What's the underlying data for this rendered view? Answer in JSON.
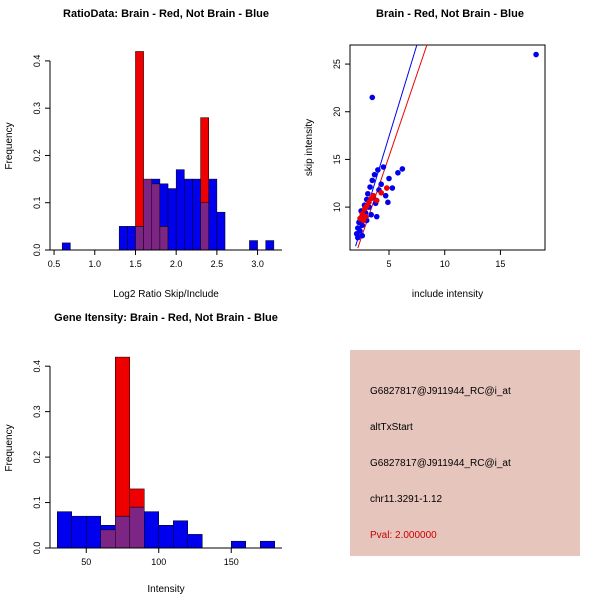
{
  "colors": {
    "red": "#ee0000",
    "blue": "#0000ee",
    "purple": "#7d2584",
    "box_bg": "#e6c5bd",
    "black": "#000000",
    "pval_red": "#cc0000"
  },
  "chart_data": [
    {
      "id": "ratio_hist",
      "type": "bar",
      "title": "RatioData: Brain - Red, Not Brain - Blue",
      "xlabel": "Log2 Ratio Skip/Include",
      "ylabel": "Frequency",
      "xlim": [
        0.45,
        3.3
      ],
      "ylim": [
        0,
        0.44
      ],
      "xticks": [
        0.5,
        1.0,
        1.5,
        2.0,
        2.5,
        3.0
      ],
      "xticklabels": [
        "0.5",
        "1.0",
        "1.5",
        "2.0",
        "2.5",
        "3.0"
      ],
      "yticks": [
        0.0,
        0.1,
        0.2,
        0.3,
        0.4
      ],
      "yticklabels": [
        "0.0",
        "0.1",
        "0.2",
        "0.3",
        "0.4"
      ],
      "bars": [
        {
          "x0": 0.6,
          "x1": 0.7,
          "blue": 0.015
        },
        {
          "x0": 1.3,
          "x1": 1.4,
          "blue": 0.05
        },
        {
          "x0": 1.4,
          "x1": 1.5,
          "blue": 0.05
        },
        {
          "x0": 1.5,
          "x1": 1.6,
          "blue": 0.05,
          "red": 0.42
        },
        {
          "x0": 1.6,
          "x1": 1.7,
          "blue": 0.15,
          "red": 0.15
        },
        {
          "x0": 1.7,
          "x1": 1.8,
          "blue": 0.15,
          "red": 0.14
        },
        {
          "x0": 1.8,
          "x1": 1.9,
          "blue": 0.14,
          "red": 0.05
        },
        {
          "x0": 1.9,
          "x1": 2.0,
          "blue": 0.13
        },
        {
          "x0": 2.0,
          "x1": 2.1,
          "blue": 0.17
        },
        {
          "x0": 2.1,
          "x1": 2.2,
          "blue": 0.15
        },
        {
          "x0": 2.2,
          "x1": 2.3,
          "blue": 0.15
        },
        {
          "x0": 2.3,
          "x1": 2.4,
          "blue": 0.1,
          "red": 0.28
        },
        {
          "x0": 2.4,
          "x1": 2.5,
          "blue": 0.15
        },
        {
          "x0": 2.5,
          "x1": 2.6,
          "blue": 0.08
        },
        {
          "x0": 2.9,
          "x1": 3.0,
          "blue": 0.02
        },
        {
          "x0": 3.1,
          "x1": 3.2,
          "blue": 0.02
        }
      ]
    },
    {
      "id": "scatter",
      "type": "scatter",
      "title": "Brain - Red, Not Brain - Blue",
      "xlabel": "include intensity",
      "ylabel": "skip intensity",
      "xlim": [
        1.5,
        19
      ],
      "ylim": [
        5.5,
        27
      ],
      "xticks": [
        5,
        10,
        15
      ],
      "xticklabels": [
        "5",
        "10",
        "15"
      ],
      "yticks": [
        10,
        15,
        20,
        25
      ],
      "yticklabels": [
        "10",
        "15",
        "20",
        "25"
      ],
      "series": [
        {
          "name": "Not Brain",
          "color": "blue",
          "points": [
            [
              2.1,
              7.2
            ],
            [
              2.2,
              7.8
            ],
            [
              2.3,
              8.4
            ],
            [
              2.4,
              7.5
            ],
            [
              2.5,
              8.9
            ],
            [
              2.5,
              9.6
            ],
            [
              2.6,
              8.1
            ],
            [
              2.7,
              9.0
            ],
            [
              2.8,
              10.2
            ],
            [
              2.9,
              9.4
            ],
            [
              3.0,
              10.8
            ],
            [
              3.0,
              8.6
            ],
            [
              3.1,
              11.4
            ],
            [
              3.2,
              10.0
            ],
            [
              3.3,
              12.1
            ],
            [
              3.4,
              9.2
            ],
            [
              3.5,
              12.8
            ],
            [
              3.6,
              11.0
            ],
            [
              3.7,
              13.4
            ],
            [
              3.8,
              10.4
            ],
            [
              4.0,
              13.9
            ],
            [
              4.1,
              11.8
            ],
            [
              4.3,
              12.4
            ],
            [
              4.5,
              14.2
            ],
            [
              4.7,
              11.2
            ],
            [
              5.0,
              13.0
            ],
            [
              5.3,
              12.0
            ],
            [
              5.8,
              13.6
            ],
            [
              6.2,
              14.0
            ],
            [
              3.5,
              21.5
            ],
            [
              18.2,
              26.0
            ],
            [
              2.2,
              6.8
            ],
            [
              2.6,
              7.0
            ],
            [
              3.9,
              9.0
            ],
            [
              4.9,
              10.5
            ]
          ]
        },
        {
          "name": "Brain",
          "color": "red",
          "points": [
            [
              2.4,
              8.8
            ],
            [
              2.6,
              9.3
            ],
            [
              2.8,
              9.8
            ],
            [
              3.0,
              10.1
            ],
            [
              3.2,
              10.5
            ],
            [
              3.4,
              10.9
            ],
            [
              2.7,
              8.6
            ],
            [
              3.6,
              11.2
            ],
            [
              3.9,
              10.7
            ],
            [
              4.3,
              11.5
            ],
            [
              4.8,
              12.0
            ],
            [
              2.9,
              9.0
            ]
          ]
        }
      ],
      "lines": [
        {
          "color": "blue",
          "x1": 2.0,
          "y1": 5.9,
          "x2": 7.5,
          "y2": 27.0
        },
        {
          "color": "red",
          "x1": 2.2,
          "y1": 5.7,
          "x2": 8.4,
          "y2": 27.0
        }
      ]
    },
    {
      "id": "gene_hist",
      "type": "bar",
      "title": "Gene Itensity: Brain - Red, Not Brain - Blue",
      "xlabel": "Intensity",
      "ylabel": "Frequency",
      "xlim": [
        25,
        185
      ],
      "ylim": [
        0,
        0.44
      ],
      "xticks": [
        50,
        100,
        150
      ],
      "xticklabels": [
        "50",
        "100",
        "150"
      ],
      "yticks": [
        0.0,
        0.1,
        0.2,
        0.3,
        0.4
      ],
      "yticklabels": [
        "0.0",
        "0.1",
        "0.2",
        "0.3",
        "0.4"
      ],
      "bars": [
        {
          "x0": 30,
          "x1": 40,
          "blue": 0.08
        },
        {
          "x0": 40,
          "x1": 50,
          "blue": 0.07
        },
        {
          "x0": 50,
          "x1": 60,
          "blue": 0.07
        },
        {
          "x0": 60,
          "x1": 70,
          "blue": 0.05,
          "red": 0.04
        },
        {
          "x0": 70,
          "x1": 80,
          "blue": 0.07,
          "red": 0.42
        },
        {
          "x0": 80,
          "x1": 90,
          "blue": 0.09,
          "red": 0.13
        },
        {
          "x0": 90,
          "x1": 100,
          "blue": 0.08
        },
        {
          "x0": 100,
          "x1": 110,
          "blue": 0.05
        },
        {
          "x0": 110,
          "x1": 120,
          "blue": 0.06
        },
        {
          "x0": 120,
          "x1": 130,
          "blue": 0.03
        },
        {
          "x0": 150,
          "x1": 160,
          "blue": 0.015
        },
        {
          "x0": 170,
          "x1": 180,
          "blue": 0.015
        }
      ]
    }
  ],
  "info_box": {
    "lines": [
      {
        "text": "G6827817@J911944_RC@i_at",
        "color": "#000000"
      },
      {
        "text": "altTxStart",
        "color": "#000000"
      },
      {
        "text": "G6827817@J911944_RC@i_at",
        "color": "#000000"
      },
      {
        "text": "chr11.3291-1.12",
        "color": "#000000"
      },
      {
        "text": "Pval: 2.000000",
        "color": "#cc0000"
      }
    ]
  }
}
